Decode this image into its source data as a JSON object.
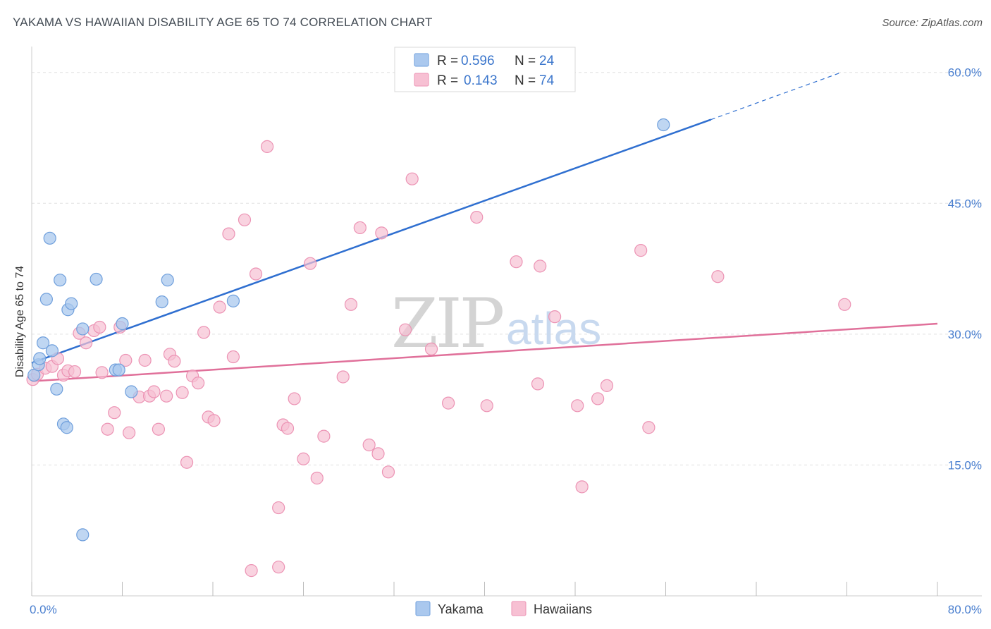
{
  "header": {
    "title": "YAKAMA VS HAWAIIAN DISABILITY AGE 65 TO 74 CORRELATION CHART",
    "source": "Source: ZipAtlas.com"
  },
  "watermark": {
    "part1": "ZIP",
    "part2": "atlas"
  },
  "legend": {
    "rows": [
      {
        "r_label": "R = ",
        "r_value": "0.596",
        "n_label": "N = ",
        "n_value": "24"
      },
      {
        "r_label": "R = ",
        "r_value": "0.143",
        "n_label": "N = ",
        "n_value": "74"
      }
    ]
  },
  "bottom_legend": {
    "items": [
      "Yakama",
      "Hawaiians"
    ]
  },
  "colors": {
    "yakama_fill": "#aac8ee",
    "yakama_stroke": "#6f9fdc",
    "yakama_line": "#2f6fd0",
    "hawaiian_fill": "#f7c0d3",
    "hawaiian_stroke": "#ec93b4",
    "hawaiian_line": "#e0709a",
    "axis_label": "#4a7fcf",
    "grid": "#e0e0e0"
  },
  "chart_data": {
    "type": "scatter",
    "title": "YAKAMA VS HAWAIIAN DISABILITY AGE 65 TO 74 CORRELATION CHART",
    "xlabel": "",
    "ylabel": "Disability Age 65 to 74",
    "xlim": [
      0,
      80
    ],
    "ylim": [
      0,
      62
    ],
    "x_tick_labels": [
      "0.0%",
      "80.0%"
    ],
    "y_ticks": [
      15,
      30,
      45,
      60
    ],
    "y_tick_labels": [
      "15.0%",
      "30.0%",
      "45.0%",
      "60.0%"
    ],
    "series": [
      {
        "name": "Yakama",
        "points": [
          [
            0.2,
            25.3
          ],
          [
            0.6,
            26.5
          ],
          [
            0.7,
            27.2
          ],
          [
            1.0,
            29.0
          ],
          [
            1.3,
            34.0
          ],
          [
            1.6,
            41.0
          ],
          [
            1.8,
            28.1
          ],
          [
            2.2,
            23.7
          ],
          [
            2.5,
            36.2
          ],
          [
            2.8,
            19.7
          ],
          [
            3.1,
            19.3
          ],
          [
            3.2,
            32.8
          ],
          [
            3.5,
            33.5
          ],
          [
            4.5,
            30.6
          ],
          [
            4.5,
            7.0
          ],
          [
            5.7,
            36.3
          ],
          [
            7.4,
            25.9
          ],
          [
            7.7,
            25.9
          ],
          [
            8.0,
            31.2
          ],
          [
            8.8,
            23.4
          ],
          [
            11.5,
            33.7
          ],
          [
            12.0,
            36.2
          ],
          [
            17.8,
            33.8
          ],
          [
            55.8,
            54.0
          ]
        ],
        "trend": {
          "x0": 0,
          "y0": 26.7,
          "x1": 60,
          "y1": 54.6,
          "dash_x1": 71.5,
          "dash_y1": 60
        }
      },
      {
        "name": "Hawaiians",
        "points": [
          [
            0.1,
            24.8
          ],
          [
            0.5,
            25.4
          ],
          [
            1.2,
            26.1
          ],
          [
            1.8,
            26.3
          ],
          [
            2.3,
            27.2
          ],
          [
            2.8,
            25.3
          ],
          [
            3.2,
            25.8
          ],
          [
            3.8,
            25.7
          ],
          [
            4.2,
            30.1
          ],
          [
            4.8,
            29.0
          ],
          [
            5.5,
            30.4
          ],
          [
            6.0,
            30.8
          ],
          [
            6.2,
            25.6
          ],
          [
            6.7,
            19.1
          ],
          [
            7.3,
            21.0
          ],
          [
            7.8,
            30.8
          ],
          [
            8.3,
            27.0
          ],
          [
            8.6,
            18.7
          ],
          [
            9.5,
            22.8
          ],
          [
            10.0,
            27.0
          ],
          [
            10.4,
            22.9
          ],
          [
            10.8,
            23.4
          ],
          [
            11.2,
            19.1
          ],
          [
            11.9,
            22.9
          ],
          [
            12.2,
            27.7
          ],
          [
            12.6,
            26.9
          ],
          [
            13.3,
            23.3
          ],
          [
            13.7,
            15.3
          ],
          [
            14.2,
            25.2
          ],
          [
            14.7,
            24.4
          ],
          [
            15.2,
            30.2
          ],
          [
            15.6,
            20.5
          ],
          [
            16.1,
            20.1
          ],
          [
            16.6,
            33.1
          ],
          [
            17.4,
            41.5
          ],
          [
            17.8,
            27.4
          ],
          [
            18.8,
            43.1
          ],
          [
            19.8,
            36.9
          ],
          [
            20.8,
            51.5
          ],
          [
            21.8,
            10.1
          ],
          [
            21.8,
            3.3
          ],
          [
            22.2,
            19.6
          ],
          [
            22.6,
            19.2
          ],
          [
            23.2,
            22.6
          ],
          [
            24.0,
            15.7
          ],
          [
            24.6,
            38.1
          ],
          [
            25.2,
            13.5
          ],
          [
            25.8,
            18.3
          ],
          [
            27.5,
            25.1
          ],
          [
            28.2,
            33.4
          ],
          [
            29.0,
            42.2
          ],
          [
            29.8,
            17.3
          ],
          [
            30.6,
            16.3
          ],
          [
            30.9,
            41.6
          ],
          [
            31.5,
            14.2
          ],
          [
            33.0,
            30.5
          ],
          [
            33.6,
            47.8
          ],
          [
            35.3,
            28.3
          ],
          [
            36.8,
            22.1
          ],
          [
            39.3,
            43.4
          ],
          [
            40.2,
            21.8
          ],
          [
            42.8,
            38.3
          ],
          [
            44.7,
            24.3
          ],
          [
            44.9,
            37.8
          ],
          [
            46.2,
            32.0
          ],
          [
            48.2,
            21.8
          ],
          [
            48.6,
            12.5
          ],
          [
            50.0,
            22.6
          ],
          [
            50.8,
            24.1
          ],
          [
            53.8,
            39.6
          ],
          [
            54.5,
            19.3
          ],
          [
            60.6,
            36.6
          ],
          [
            71.8,
            33.4
          ],
          [
            19.4,
            2.9
          ]
        ],
        "trend": {
          "x0": 0,
          "y0": 24.6,
          "x1": 80,
          "y1": 31.2
        }
      }
    ]
  }
}
